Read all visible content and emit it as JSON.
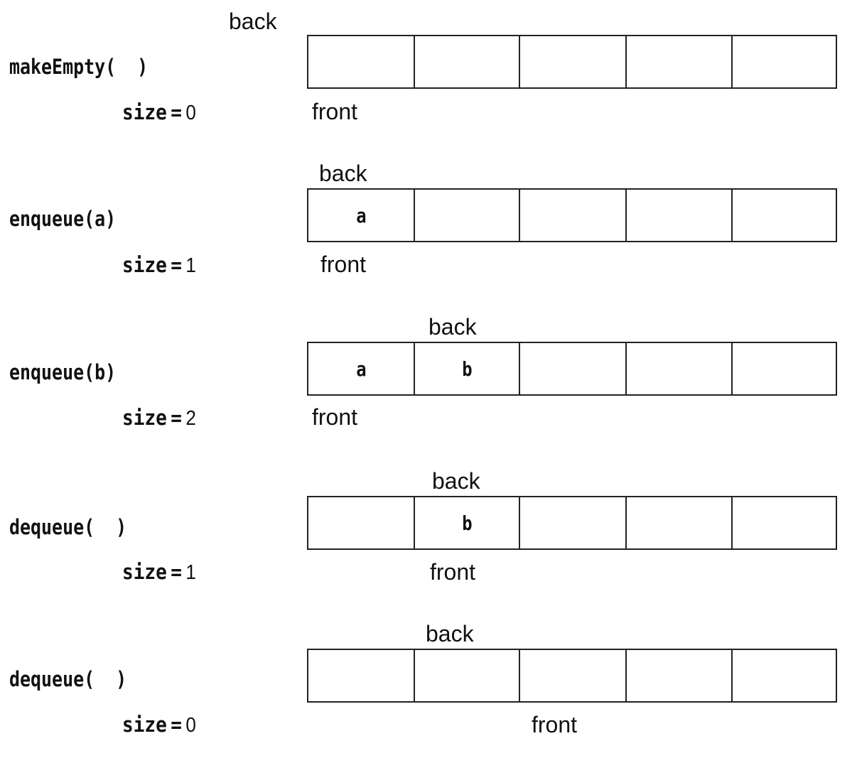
{
  "steps": [
    {
      "operation": "makeEmpty(  )",
      "size_label": "size",
      "size_value": "0",
      "back_label": "back",
      "front_label": "front",
      "cells": [
        "",
        "",
        "",
        "",
        ""
      ]
    },
    {
      "operation": "enqueue(a)",
      "size_label": "size",
      "size_value": "1",
      "back_label": "back",
      "front_label": "front",
      "cells": [
        "a",
        "",
        "",
        "",
        ""
      ]
    },
    {
      "operation": "enqueue(b)",
      "size_label": "size",
      "size_value": "2",
      "back_label": "back",
      "front_label": "front",
      "cells": [
        "a",
        "b",
        "",
        "",
        ""
      ]
    },
    {
      "operation": "dequeue(  )",
      "size_label": "size",
      "size_value": "1",
      "back_label": "back",
      "front_label": "front",
      "cells": [
        "",
        "b",
        "",
        "",
        ""
      ]
    },
    {
      "operation": "dequeue(  )",
      "size_label": "size",
      "size_value": "0",
      "back_label": "back",
      "front_label": "front",
      "cells": [
        "",
        "",
        "",
        "",
        ""
      ]
    }
  ]
}
